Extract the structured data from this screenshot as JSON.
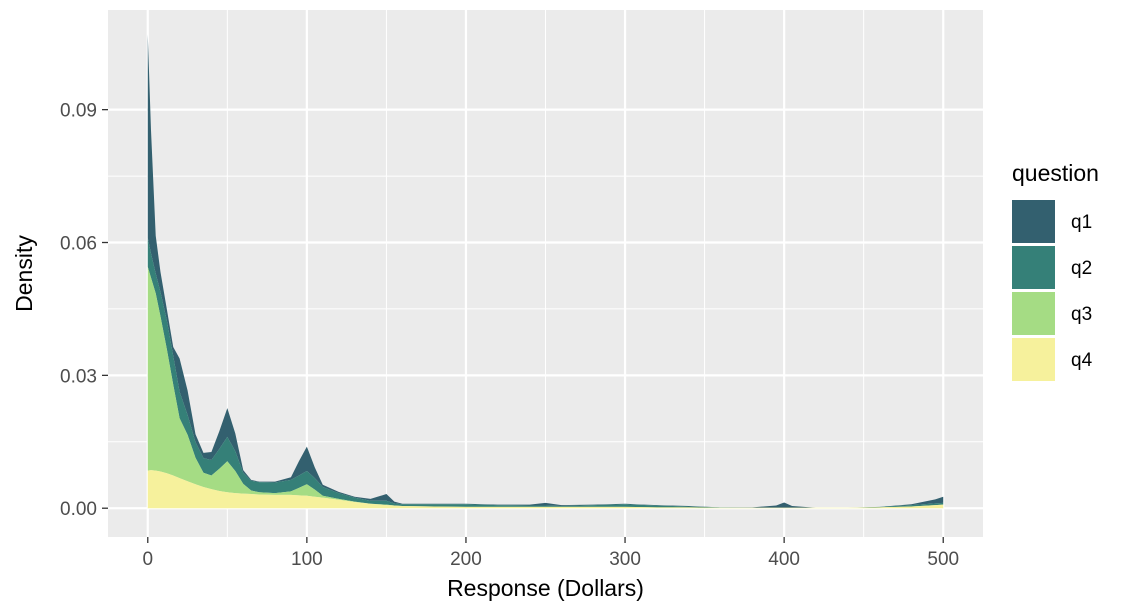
{
  "chart_data": {
    "type": "area",
    "stacked": true,
    "xlabel": "Response (Dollars)",
    "ylabel": "Density",
    "xlim": [
      -25,
      525
    ],
    "ylim": [
      -0.0065,
      0.1125
    ],
    "x_ticks": [
      0,
      100,
      200,
      300,
      400,
      500
    ],
    "x_tick_labels": [
      "0",
      "100",
      "200",
      "300",
      "400",
      "500"
    ],
    "x_minor_ticks": [
      50,
      150,
      250,
      350,
      450
    ],
    "y_ticks": [
      0,
      0.03,
      0.06,
      0.09
    ],
    "y_tick_labels": [
      "0.00",
      "0.03",
      "0.06",
      "0.09"
    ],
    "y_minor_ticks": [
      0.015,
      0.045,
      0.075
    ],
    "grid": true,
    "panel_background": "#EBEBEB",
    "legend": {
      "title": "question",
      "position": "right",
      "entries": [
        "q1",
        "q2",
        "q3",
        "q4"
      ]
    },
    "x": [
      0,
      2,
      5,
      8,
      12,
      16,
      20,
      25,
      30,
      35,
      40,
      45,
      50,
      55,
      60,
      65,
      70,
      80,
      90,
      95,
      100,
      105,
      110,
      120,
      130,
      140,
      150,
      155,
      160,
      180,
      200,
      220,
      240,
      250,
      260,
      280,
      300,
      320,
      340,
      360,
      380,
      395,
      400,
      405,
      420,
      440,
      460,
      480,
      495,
      500
    ],
    "series": [
      {
        "name": "q4",
        "color": "#F6F19C",
        "values": [
          0.0085,
          0.0086,
          0.0085,
          0.0083,
          0.0079,
          0.0074,
          0.0068,
          0.0061,
          0.0054,
          0.0048,
          0.0043,
          0.0039,
          0.0036,
          0.0034,
          0.0033,
          0.0032,
          0.0031,
          0.003,
          0.003,
          0.0029,
          0.0028,
          0.0026,
          0.0024,
          0.0019,
          0.0014,
          0.001,
          0.0007,
          0.0006,
          0.0005,
          0.0004,
          0.0003,
          0.0003,
          0.0003,
          0.0003,
          0.0003,
          0.0003,
          0.0003,
          0.0002,
          0.0002,
          0.0001,
          0.0001,
          0.0001,
          0.0001,
          0.0001,
          0.0001,
          0.0001,
          0.0002,
          0.0004,
          0.0007,
          0.0008
        ]
      },
      {
        "name": "q3",
        "color": "#A5DC84",
        "values": [
          0.046,
          0.0435,
          0.04,
          0.035,
          0.028,
          0.0205,
          0.0135,
          0.0105,
          0.006,
          0.0032,
          0.0031,
          0.005,
          0.007,
          0.005,
          0.0022,
          0.0008,
          0.0005,
          0.0004,
          0.0008,
          0.0017,
          0.0026,
          0.0016,
          0.0004,
          0.0002,
          0.0001,
          0.0,
          0.0001,
          0.0,
          0.0,
          0.0,
          0.0,
          0.0,
          0.0,
          0.0,
          0.0,
          0.0,
          0.0,
          0.0,
          0.0,
          0.0,
          0.0,
          0.0,
          0.0,
          0.0,
          0.0,
          0.0,
          0.0,
          0.0,
          0.0,
          0.0
        ]
      },
      {
        "name": "q2",
        "color": "#358078",
        "values": [
          0.0065,
          0.0055,
          0.0045,
          0.0055,
          0.0065,
          0.0065,
          0.006,
          0.0045,
          0.0035,
          0.0033,
          0.0035,
          0.0045,
          0.0055,
          0.0045,
          0.0025,
          0.0022,
          0.0023,
          0.0024,
          0.0026,
          0.0028,
          0.003,
          0.0026,
          0.002,
          0.0013,
          0.0009,
          0.0007,
          0.0009,
          0.0005,
          0.0004,
          0.0005,
          0.0006,
          0.0004,
          0.0003,
          0.0003,
          0.0002,
          0.0004,
          0.0006,
          0.0004,
          0.0002,
          0.0001,
          0.0,
          0.0,
          0.0,
          0.0,
          0.0,
          0.0,
          0.0001,
          0.0003,
          0.0004,
          0.0004
        ]
      },
      {
        "name": "q1",
        "color": "#33606F",
        "values": [
          0.046,
          0.028,
          0.0085,
          0.0045,
          0.0025,
          0.002,
          0.0075,
          0.0055,
          0.0018,
          0.0012,
          0.0018,
          0.004,
          0.0065,
          0.004,
          0.0006,
          0.0002,
          0.0001,
          0.0002,
          0.0006,
          0.0032,
          0.0055,
          0.0024,
          0.0005,
          0.0003,
          0.0002,
          0.0004,
          0.0015,
          0.0004,
          0.0001,
          0.0001,
          0.0001,
          0.0001,
          0.0002,
          0.0006,
          0.0002,
          0.0001,
          0.0001,
          0.0001,
          0.0001,
          0.0,
          0.0001,
          0.0005,
          0.0012,
          0.0004,
          0.0,
          0.0,
          0.0,
          0.0002,
          0.0009,
          0.0014
        ]
      }
    ]
  }
}
